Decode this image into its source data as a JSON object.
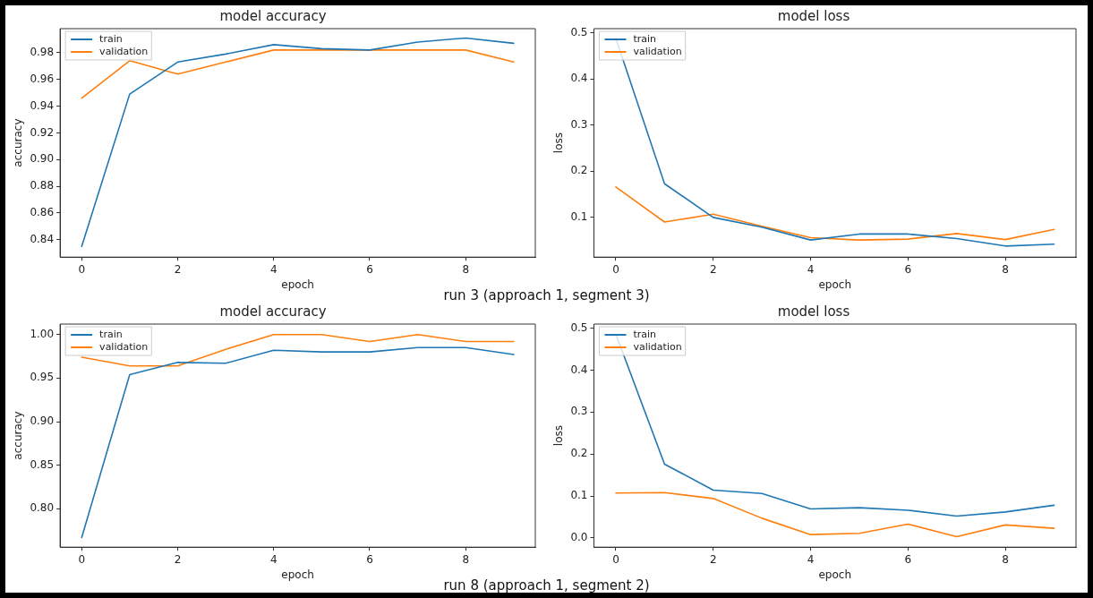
{
  "chart_data": [
    {
      "type": "line",
      "title": "model accuracy",
      "xlabel": "epoch",
      "ylabel": "accuracy",
      "x": [
        0,
        1,
        2,
        3,
        4,
        5,
        6,
        7,
        8,
        9
      ],
      "xlim": [
        -0.45,
        9.45
      ],
      "xticks": [
        0,
        2,
        4,
        6,
        8
      ],
      "ylim": [
        0.827,
        0.998
      ],
      "yticks": [
        0.84,
        0.86,
        {
          "value": 0.88,
          "label": "0.88"
        },
        {
          "value": 0.9,
          "label": "0.90"
        },
        0.92,
        0.94,
        0.96,
        0.98
      ],
      "legend": "top left",
      "grid": false,
      "annotations": [
        "run 3 (approach 1, segment 3)"
      ],
      "series": [
        {
          "name": "train",
          "color": "#1f77b4",
          "values": [
            0.835,
            0.949,
            0.973,
            0.979,
            0.986,
            0.983,
            0.982,
            0.988,
            0.991,
            0.987
          ]
        },
        {
          "name": "validation",
          "color": "#ff7f0e",
          "values": [
            0.946,
            0.974,
            0.964,
            0.973,
            0.982,
            0.982,
            0.982,
            0.982,
            0.982,
            0.973
          ]
        }
      ]
    },
    {
      "type": "line",
      "title": "model loss",
      "xlabel": "epoch",
      "ylabel": "loss",
      "x": [
        0,
        1,
        2,
        3,
        4,
        5,
        6,
        7,
        8,
        9
      ],
      "xlim": [
        -0.45,
        9.45
      ],
      "xticks": [
        0,
        2,
        4,
        6,
        8
      ],
      "ylim": [
        0.014,
        0.509
      ],
      "yticks": [
        0.1,
        0.2,
        0.3,
        0.4,
        0.5
      ],
      "legend": "top left",
      "grid": false,
      "series": [
        {
          "name": "train",
          "color": "#1f77b4",
          "values": [
            0.488,
            0.173,
            0.1,
            0.079,
            0.051,
            0.064,
            0.064,
            0.054,
            0.038,
            0.042
          ]
        },
        {
          "name": "validation",
          "color": "#ff7f0e",
          "values": [
            0.166,
            0.09,
            0.107,
            0.081,
            0.056,
            0.051,
            0.053,
            0.065,
            0.052,
            0.074
          ]
        }
      ]
    },
    {
      "type": "line",
      "title": "model accuracy",
      "xlabel": "epoch",
      "ylabel": "accuracy",
      "x": [
        0,
        1,
        2,
        3,
        4,
        5,
        6,
        7,
        8,
        9
      ],
      "xlim": [
        -0.45,
        9.45
      ],
      "xticks": [
        0,
        2,
        4,
        6,
        8
      ],
      "ylim": [
        0.756,
        1.012
      ],
      "yticks": [
        {
          "value": 0.8,
          "label": "0.80"
        },
        0.85,
        {
          "value": 0.9,
          "label": "0.90"
        },
        0.95,
        {
          "value": 1,
          "label": "1.00"
        }
      ],
      "legend": "top left",
      "grid": false,
      "annotations": [
        "run 8 (approach 1, segment 2)"
      ],
      "series": [
        {
          "name": "train",
          "color": "#1f77b4",
          "values": [
            0.767,
            0.954,
            0.968,
            0.967,
            0.982,
            0.98,
            0.98,
            0.985,
            0.985,
            0.977
          ]
        },
        {
          "name": "validation",
          "color": "#ff7f0e",
          "values": [
            0.974,
            0.964,
            0.964,
            0.983,
            1.0,
            1.0,
            0.992,
            1.0,
            0.992,
            0.992
          ]
        }
      ]
    },
    {
      "type": "line",
      "title": "model loss",
      "xlabel": "epoch",
      "ylabel": "loss",
      "x": [
        0,
        1,
        2,
        3,
        4,
        5,
        6,
        7,
        8,
        9
      ],
      "xlim": [
        -0.45,
        9.45
      ],
      "xticks": [
        0,
        2,
        4,
        6,
        8
      ],
      "ylim": [
        -0.022,
        0.51
      ],
      "yticks": [
        {
          "value": 0,
          "label": "0.0"
        },
        0.1,
        0.2,
        0.3,
        0.4,
        0.5
      ],
      "legend": "top left",
      "grid": false,
      "series": [
        {
          "name": "train",
          "color": "#1f77b4",
          "values": [
            0.486,
            0.176,
            0.114,
            0.106,
            0.069,
            0.072,
            0.066,
            0.052,
            0.062,
            0.078
          ]
        },
        {
          "name": "validation",
          "color": "#ff7f0e",
          "values": [
            0.107,
            0.108,
            0.094,
            0.047,
            0.008,
            0.011,
            0.033,
            0.003,
            0.031,
            0.023
          ]
        }
      ]
    }
  ]
}
